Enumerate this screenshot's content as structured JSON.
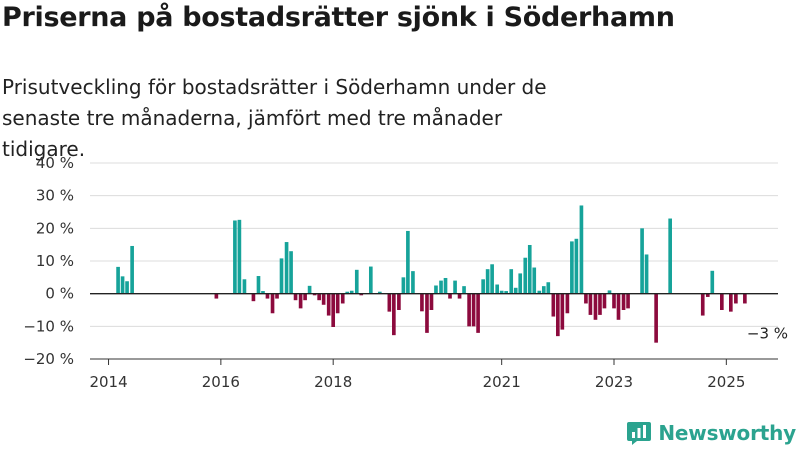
{
  "title": "Priserna på bostadsrätter sjönk i Söderhamn",
  "subtitle": "Prisutveckling för bostadsrätter i Söderhamn under de senaste tre månaderna, jämfört med tre månader tidigare.",
  "brand": "Newsworthy",
  "colors": {
    "positive": "#16a39a",
    "negative": "#8c0a3d",
    "grid": "#dcdcdc",
    "axis": "#333333",
    "brand": "#2ba38f"
  },
  "chart_data": {
    "type": "bar",
    "title": "Priserna på bostadsrätter sjönk i Söderhamn",
    "ylim": [
      -20,
      40
    ],
    "yticks": [
      -20,
      -10,
      0,
      10,
      20,
      30,
      40
    ],
    "ytick_labels": [
      "−20 %",
      "−10 %",
      "0 %",
      "10 %",
      "20 %",
      "30 %",
      "40 %"
    ],
    "xlim": [
      2013.67,
      2025.92
    ],
    "xticks": [
      2014,
      2016,
      2018,
      2021,
      2023,
      2025
    ],
    "xtick_labels": [
      "2014",
      "2016",
      "2018",
      "2021",
      "2023",
      "2025"
    ],
    "grid": true,
    "annotation": {
      "x": 2025.58,
      "y": -3,
      "text": "−3 %"
    },
    "x": [
      2014.17,
      2014.25,
      2014.33,
      2014.42,
      2015.92,
      2016.25,
      2016.33,
      2016.42,
      2016.58,
      2016.67,
      2016.75,
      2016.83,
      2016.92,
      2017.0,
      2017.08,
      2017.17,
      2017.25,
      2017.33,
      2017.42,
      2017.5,
      2017.58,
      2017.67,
      2017.75,
      2017.83,
      2017.92,
      2018.0,
      2018.08,
      2018.17,
      2018.25,
      2018.33,
      2018.42,
      2018.5,
      2018.67,
      2018.83,
      2019.0,
      2019.08,
      2019.17,
      2019.25,
      2019.33,
      2019.42,
      2019.58,
      2019.67,
      2019.75,
      2019.83,
      2019.92,
      2020.0,
      2020.08,
      2020.17,
      2020.25,
      2020.33,
      2020.42,
      2020.5,
      2020.58,
      2020.67,
      2020.75,
      2020.83,
      2020.92,
      2021.0,
      2021.08,
      2021.17,
      2021.25,
      2021.33,
      2021.42,
      2021.5,
      2021.58,
      2021.67,
      2021.75,
      2021.83,
      2021.92,
      2022.0,
      2022.08,
      2022.17,
      2022.25,
      2022.33,
      2022.42,
      2022.5,
      2022.58,
      2022.67,
      2022.75,
      2022.83,
      2022.92,
      2023.0,
      2023.08,
      2023.17,
      2023.25,
      2023.5,
      2023.58,
      2023.75,
      2024.0,
      2024.58,
      2024.67,
      2024.75,
      2024.92,
      2025.08,
      2025.17,
      2025.33
    ],
    "values": [
      8.2,
      5.3,
      3.8,
      14.6,
      -1.5,
      22.4,
      22.6,
      4.4,
      -2.3,
      5.4,
      0.8,
      -1.5,
      -6,
      -1.5,
      10.8,
      15.8,
      13,
      -2,
      -4.5,
      -2,
      2.4,
      -0.5,
      -2,
      -3.4,
      -6.7,
      -10.2,
      -6,
      -3,
      0.6,
      0.9,
      7.3,
      -0.5,
      8.3,
      0.6,
      -5.5,
      -12.7,
      -5,
      5,
      19.2,
      6.9,
      -5.4,
      -12,
      -5,
      2.5,
      4,
      4.8,
      -1.5,
      4,
      -1.5,
      2.3,
      -10,
      -10,
      -12,
      4.4,
      7.5,
      9,
      2.8,
      0.9,
      0.8,
      7.5,
      1.8,
      6.2,
      11,
      14.9,
      8,
      0.9,
      2.3,
      3.5,
      -7,
      -13,
      -11,
      -6,
      16,
      16.8,
      27,
      -3,
      -6.5,
      -8,
      -6.5,
      -4.5,
      1,
      -4.5,
      -8,
      -5,
      -4.5,
      20,
      12,
      -15,
      23,
      -6.7,
      -1,
      7,
      -5,
      -5.5,
      -3,
      -3
    ]
  }
}
